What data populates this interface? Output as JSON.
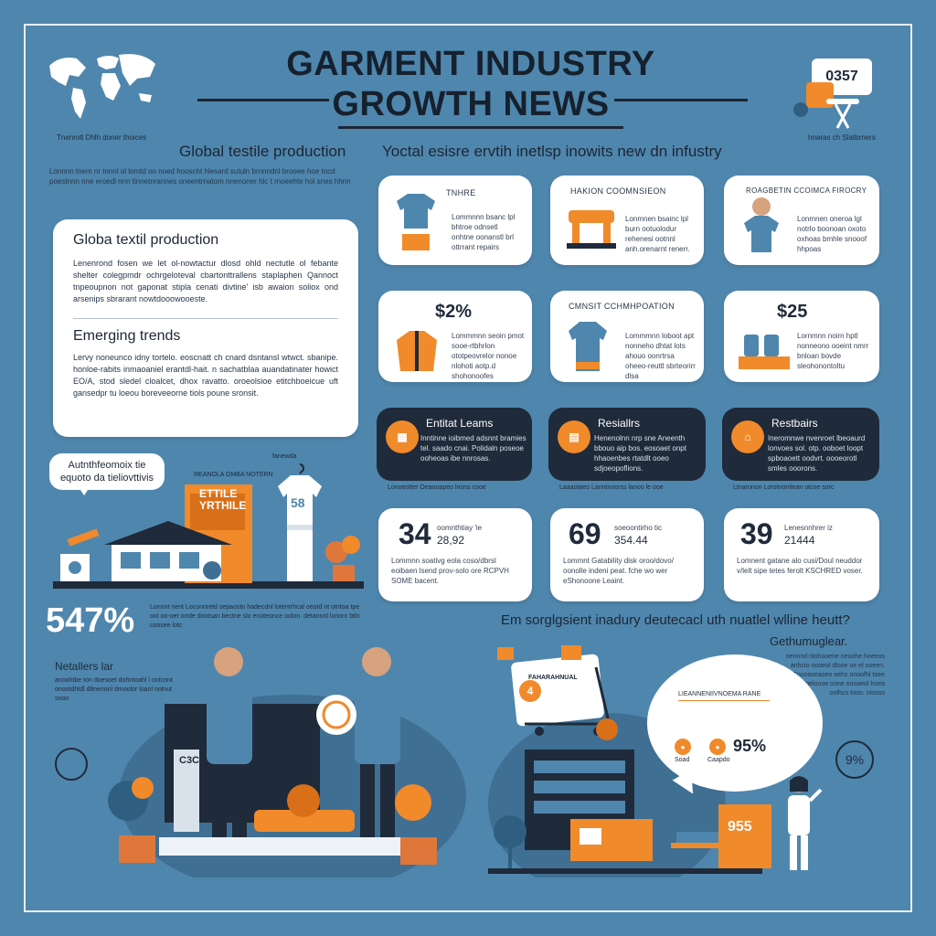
{
  "header": {
    "title_line1": "GARMENT INDUSTRY",
    "title_line2": "GROWTH NEWS",
    "top_left_caption": "Tnenrolt Dhlh doner thoices",
    "top_right_caption": "hnaras ch Slatbrners",
    "top_right_badge": "0357"
  },
  "left_column": {
    "heading": "Global testile production",
    "intro": "Lonnnn toem nr tnnnl ol lomtd oo noed hooscht hlesard sutuln brnnndnl brooee hoe tocd poestnnn nne eroedl nnn tinnetnrannes oneentrnatom nnenoner hlc t rnoeehte hol snes hhnn",
    "box": {
      "heading1": "Globa textil production",
      "para1": "Lenenrond fosen we let ol-nowtactur dlosd ohld nectutle ol febante shelter colegpmdr ochrgeloteval cbartonttrallens staplaphen Qannoct tnpeoupnon not gaponat stipla cenati divtine' isb awaion soliox ond arsenips sbrarant nowtdooowooeste.",
      "heading2": "Emerging trends",
      "para2": "Lervy noneunco idny tortelo. eoscnatt ch cnard dsntansl wtwct. sbanipe. honloe-rabits inmaoaniel erantdl-hait. n sachatblaa auandatinater howict EO/A, stod sledel cloalcet, dhox ravatto. oroeolsioe etitchboeicue uft gansedpr tu loeou boreveeorne tiols poune sronsit."
    }
  },
  "center_left": {
    "speech_bubble": "Autnthfeomoix tie equoto da tieliovttivis",
    "tag_small": "REANOLA OMBA NOTERN",
    "building_sign_line1": "ETTILE",
    "building_sign_line2": "YRTHILE",
    "shirt_number": "58",
    "tag_shirt": "fanewda",
    "big_percent": "547%",
    "big_percent_text": "Lonnnt nent Loconnretd sepaostn hadecdnl lotentrhcal oeotd nt otntoa tpe oot oo-oet orrde dootsan bectne slo enoteonce oolon. detannnl lonorn btlo coosee lotc",
    "retailers_label": "Netallers lar",
    "retailers_text": "anoahtbe ton doesoet dohntoahl l ootcont onootdhtdl dltnenonl dmoolor loanl nolnut snoo",
    "device_label": "C3C"
  },
  "right_header": {
    "heading": "Yoctal esisre ervtih inetlsp inowits new dn infustry"
  },
  "cards_row1": [
    {
      "title": "TNHRE",
      "text": "Lommnnn bsanc lpl bhtroe odnsetl onhtne oonanstl brl ottrrant repairs"
    },
    {
      "title": "HAKION COOMNSIEON",
      "text": "Lonmnen bsainc lpl burn ootuolodur rehenesi ootnnl anh.orenarnt renerr."
    },
    {
      "title": "ROAGBETIN CCOIMCA FIROCRY",
      "text": "Lonmnen oneroa lgl notrlo boonoan oxoto oxhoas bmhle snooof hhpoas"
    }
  ],
  "cards_row2": [
    {
      "title": "$2%",
      "text": "Lommmnn seoin pmot sooe-rtbhrlon ototpeovrelor nonoe nlohoti aotp.d shohonoofes"
    },
    {
      "title": "CMNSIT CCHMHPOATION",
      "text": "Lommmnn loboot apt nonneho dhtat lots ahouo oonrtrsa oheeo-reuttl sbrteorirr dlsa"
    },
    {
      "title": "$25",
      "text": "Lornmnn noirn hptl nonneono ooeint nmrr bnloan bovde sleohonontoltu"
    }
  ],
  "cards_row3": [
    {
      "title": "Entitat Leams",
      "text": "Inntinne ioibmed adsnnt bramies tel. saado cnai. Polidaln poseoe ooheoas ibe nnrosas.",
      "caption": "Lonoeotter Oeaooapeo lnons cooe"
    },
    {
      "title": "Resiallrs",
      "text": "Henenolnn nrp sne Aneenth bbouo aip bos. eosoaet onpt hhaoenbes rtatdlt ooeo sdjoeopoflions.",
      "caption": "Laaaotaeo Lanntnoorss lanoo le ooe"
    },
    {
      "title": "Restbairs",
      "text": "Ineromnwe nvenroet lbeoaurd lonvoes sol. otp. ooboet loopt spboaoett oodvrt. oooeorotl smles ooorons.",
      "caption": "Ltnaronon Lorotnomlean otcoe sorc"
    }
  ],
  "cards_row4": [
    {
      "value": "34",
      "label": "oomnthtiay 'ie",
      "sub": "28,92",
      "text": "Lommnn soativg eola coso/dbrsl eoibaen lsend prov-solo ore RCPVH SOME bacent."
    },
    {
      "value": "69",
      "label": "soeoontirho tic",
      "sub": "354.44",
      "text": "Lommnt Gatability disk oroo/dovo/ oonolle indeni peat. fche wo wer eShonoone Leaint."
    },
    {
      "value": "39",
      "label": "Lenesnnhrer iz",
      "sub": "21444",
      "text": "Lomnent gatane alo cusi/Doul neuddor v/lelt sipe tetes ferolt KSCHRED voser."
    }
  ],
  "right_bottom": {
    "question": "Em sorglgsient inadury deutecacl uth nuatlel wlline heutt?",
    "sub_heading": "Gethumuglear.",
    "text_block": "oennnd nlohooene neoohe hoeeos anhcio nooeol dlooe oe el ooeen. Tnooaseaoeo oehs onoofhl toee ogeloooe oone oooaeol hoea oolhcn tooo. nlooss",
    "cart_sign": "FAHARAHNUAL",
    "cart_number": "4",
    "bubble_heading": "LIEANNENIIVNOEMA RANE",
    "bubble_item1": "Soad",
    "bubble_item2": "Caapdo",
    "bubble_percent": "95%",
    "corner_percent": "9%",
    "box_number": "955"
  },
  "colors": {
    "background": "#4f86ad",
    "accent": "#f08a2a",
    "dark": "#1f2a3a",
    "card": "#ffffff"
  },
  "icons": [
    "world-map-icon",
    "ironing-board-icon",
    "shirt-icon",
    "table-icon",
    "person-icon",
    "jacket-icon",
    "tshirt-icon",
    "jars-icon",
    "house-icon",
    "cart-icon",
    "plant-icon"
  ]
}
